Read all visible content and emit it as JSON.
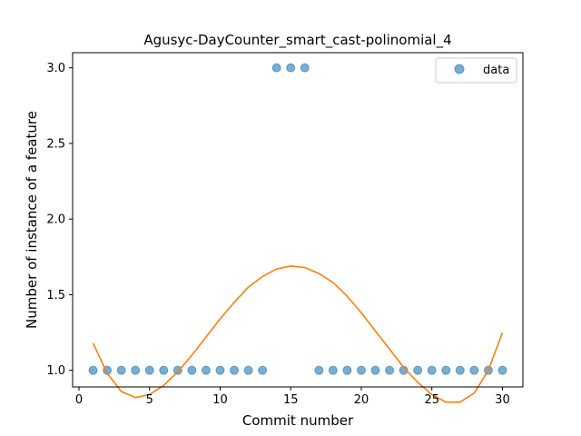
{
  "chart_data": {
    "type": "scatter",
    "title": "Agusyc-DayCounter_smart_cast-polinomial_4",
    "xlabel": "Commit number",
    "ylabel": "Number of instance of a feature",
    "xlim": [
      -0.45,
      31.45
    ],
    "ylim": [
      0.89,
      3.1
    ],
    "xticks": [
      0,
      5,
      10,
      15,
      20,
      25,
      30
    ],
    "yticks": [
      1.0,
      1.5,
      2.0,
      2.5,
      3.0
    ],
    "xtick_labels": [
      "0",
      "5",
      "10",
      "15",
      "20",
      "25",
      "30"
    ],
    "ytick_labels": [
      "1.0",
      "1.5",
      "2.0",
      "2.5",
      "3.0"
    ],
    "grid": false,
    "legend_position": "top-right",
    "series": [
      {
        "name": "data",
        "type": "scatter",
        "color": "#1f77b4",
        "x": [
          1,
          2,
          3,
          4,
          5,
          6,
          7,
          8,
          9,
          10,
          11,
          12,
          13,
          14,
          15,
          16,
          17,
          18,
          19,
          20,
          21,
          22,
          23,
          24,
          25,
          26,
          27,
          28,
          29,
          30
        ],
        "y": [
          1,
          1,
          1,
          1,
          1,
          1,
          1,
          1,
          1,
          1,
          1,
          1,
          1,
          3,
          3,
          3,
          1,
          1,
          1,
          1,
          1,
          1,
          1,
          1,
          1,
          1,
          1,
          1,
          1,
          1
        ]
      },
      {
        "type": "line",
        "color": "#ff7f0e",
        "x": [
          1,
          2,
          3,
          4,
          5,
          6,
          7,
          8,
          9,
          10,
          11,
          12,
          13,
          14,
          15,
          16,
          17,
          18,
          19,
          20,
          21,
          22,
          23,
          24,
          25,
          26,
          27,
          28,
          29,
          30
        ],
        "y": [
          1.18,
          0.98,
          0.86,
          0.82,
          0.84,
          0.9,
          0.99,
          1.1,
          1.22,
          1.34,
          1.45,
          1.55,
          1.62,
          1.67,
          1.69,
          1.68,
          1.64,
          1.58,
          1.49,
          1.38,
          1.26,
          1.14,
          1.02,
          0.92,
          0.84,
          0.79,
          0.79,
          0.85,
          1.0,
          1.25
        ]
      }
    ]
  }
}
